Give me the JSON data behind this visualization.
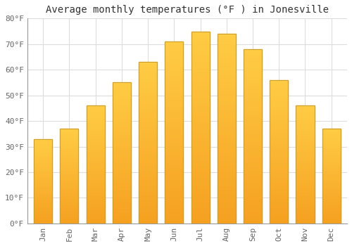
{
  "title": "Average monthly temperatures (°F ) in Jonesville",
  "months": [
    "Jan",
    "Feb",
    "Mar",
    "Apr",
    "May",
    "Jun",
    "Jul",
    "Aug",
    "Sep",
    "Oct",
    "Nov",
    "Dec"
  ],
  "values": [
    33,
    37,
    46,
    55,
    63,
    71,
    75,
    74,
    68,
    56,
    46,
    37
  ],
  "bar_color_top": "#FFCC44",
  "bar_color_bottom": "#F5A020",
  "bar_edge_color": "#CCA030",
  "ylim": [
    0,
    80
  ],
  "yticks": [
    0,
    10,
    20,
    30,
    40,
    50,
    60,
    70,
    80
  ],
  "ytick_labels": [
    "0°F",
    "10°F",
    "20°F",
    "30°F",
    "40°F",
    "50°F",
    "60°F",
    "70°F",
    "80°F"
  ],
  "background_color": "#FFFFFF",
  "grid_color": "#DDDDDD",
  "title_fontsize": 10,
  "tick_fontsize": 8,
  "font_family": "monospace",
  "bar_width": 0.7
}
